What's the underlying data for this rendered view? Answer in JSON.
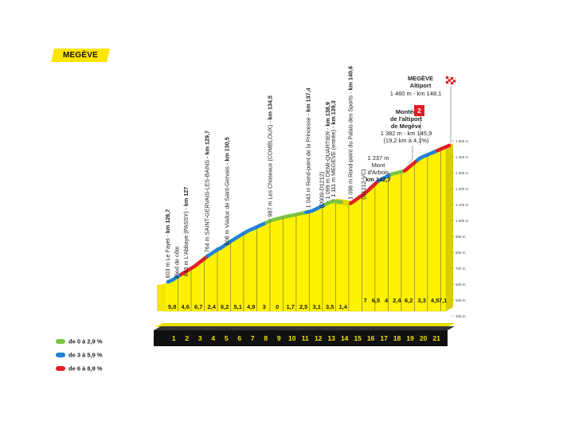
{
  "stage_title": "MEGÈVE",
  "legend": [
    {
      "label": "de 0 à 2,9 %",
      "color": "#7dc242"
    },
    {
      "label": "de 3 à 5,9 %",
      "color": "#1f83d8"
    },
    {
      "label": "de 6 à 8,9 %",
      "color": "#e31e24"
    }
  ],
  "colors": {
    "profile_fill": "#fff200",
    "profile_edge": "#d6c900",
    "base_bar": "#111111",
    "ground": "#f2e600"
  },
  "chart_data": {
    "type": "area",
    "title": "",
    "xlabel": "",
    "ylabel": "",
    "x_start_km": 126.7,
    "ylim": [
      400,
      1500
    ],
    "y_ticks": [
      400,
      500,
      600,
      700,
      800,
      900,
      1000,
      1100,
      1200,
      1300,
      1400,
      1500
    ],
    "y_tick_labels": [
      "400 m",
      "500 m",
      "600 m",
      "700 m",
      "800 m",
      "900 m",
      "1 000 m",
      "1 100 m",
      "1 200 m",
      "1 300 m",
      "1 400 m",
      "1 500 m"
    ],
    "km_marks": [
      "1",
      "2",
      "3",
      "4",
      "5",
      "6",
      "7",
      "8",
      "9",
      "10",
      "11",
      "12",
      "13",
      "14",
      "15",
      "16",
      "17",
      "18",
      "19",
      "20",
      "21"
    ],
    "segment_gradients": [
      "5,8",
      "4,6",
      "6,7",
      "2,4",
      "6,2",
      "5,1",
      "4,9",
      "3",
      "0",
      "1,7",
      "2,5",
      "3,1",
      "3,5",
      "1,4",
      "",
      "7",
      "6,5",
      "4",
      "2,4",
      "6,2",
      "3,3",
      "4,5",
      "7,1"
    ],
    "profile": [
      {
        "km": 0,
        "alt": 603
      },
      {
        "km": 0.3,
        "alt": 613
      },
      {
        "km": 1,
        "alt": 650
      },
      {
        "km": 2,
        "alt": 700
      },
      {
        "km": 3,
        "alt": 764
      },
      {
        "km": 3.8,
        "alt": 808
      },
      {
        "km": 4,
        "alt": 815
      },
      {
        "km": 5,
        "alt": 870
      },
      {
        "km": 6,
        "alt": 920
      },
      {
        "km": 7.8,
        "alt": 987
      },
      {
        "km": 8,
        "alt": 993
      },
      {
        "km": 9,
        "alt": 1013
      },
      {
        "km": 10.7,
        "alt": 1043
      },
      {
        "km": 11,
        "alt": 1050
      },
      {
        "km": 12.2,
        "alt": 1099
      },
      {
        "km": 12.6,
        "alt": 1111
      },
      {
        "km": 13.9,
        "alt": 1096
      },
      {
        "km": 15,
        "alt": 1160
      },
      {
        "km": 16,
        "alt": 1237
      },
      {
        "km": 17,
        "alt": 1280
      },
      {
        "km": 18,
        "alt": 1300
      },
      {
        "km": 19.2,
        "alt": 1382
      },
      {
        "km": 20,
        "alt": 1410
      },
      {
        "km": 21.4,
        "alt": 1460
      }
    ],
    "gradient_bands": [
      {
        "from": 0,
        "to": 1.0,
        "class": "de 3 à 5,9 %"
      },
      {
        "from": 1.0,
        "to": 3.0,
        "class": "de 6 à 8,9 %"
      },
      {
        "from": 3.0,
        "to": 4.0,
        "class": "de 3 à 5,9 %"
      },
      {
        "from": 4.0,
        "to": 7.5,
        "class": "de 3 à 5,9 %"
      },
      {
        "from": 7.5,
        "to": 10.5,
        "class": "de 0 à 2,9 %"
      },
      {
        "from": 10.5,
        "to": 12.0,
        "class": "de 3 à 5,9 %"
      },
      {
        "from": 12.0,
        "to": 13.2,
        "class": "de 0 à 2,9 %"
      },
      {
        "from": 13.9,
        "to": 16.0,
        "class": "de 6 à 8,9 %"
      },
      {
        "from": 16.0,
        "to": 17.0,
        "class": "de 3 à 5,9 %"
      },
      {
        "from": 17.0,
        "to": 18.0,
        "class": "de 0 à 2,9 %"
      },
      {
        "from": 18.0,
        "to": 19.0,
        "class": "de 6 à 8,9 %"
      },
      {
        "from": 19.0,
        "to": 20.5,
        "class": "de 3 à 5,9 %"
      },
      {
        "from": 20.5,
        "to": 21.4,
        "class": "de 6 à 8,9 %"
      }
    ],
    "annotations": [
      {
        "km": 0,
        "alt": 603,
        "text": "603 m Le Fayet - ",
        "bold": "km 126,7"
      },
      {
        "km": 0.15,
        "alt": 603,
        "text": "Pied de côte",
        "bold": ""
      },
      {
        "km": 0.3,
        "alt": 613,
        "text": "613 m L'Abbaye (PASSY) - ",
        "bold": "km 127"
      },
      {
        "km": 3,
        "alt": 764,
        "text": "764 m SAINT-GERVAIS-LES-BAINS - ",
        "bold": "km 129,7"
      },
      {
        "km": 3.8,
        "alt": 808,
        "text": "808 m Viaduc de Saint-Gervais - ",
        "bold": "km 130,5"
      },
      {
        "km": 7.8,
        "alt": 987,
        "text": "987 m Les Choseaux (COMBLOUX) - ",
        "bold": "km 134,5"
      },
      {
        "km": 10.7,
        "alt": 1043,
        "text": "1 043 m Rond-point de la Princesse - ",
        "bold": "km 137,4"
      },
      {
        "km": 11.0,
        "alt": 1043,
        "text": "(D909-D1212)",
        "bold": ""
      },
      {
        "km": 12.2,
        "alt": 1099,
        "text": "1 099 m DEMI-QUARTIER - ",
        "bold": "km 138,9"
      },
      {
        "km": 12.6,
        "alt": 1111,
        "text": "1 111 m MEGÈVE (entrée) - ",
        "bold": "km 139,3"
      },
      {
        "km": 13.9,
        "alt": 1096,
        "text": "1 096 m Rond-point du Palais des Sports - ",
        "bold": "km 140,6"
      },
      {
        "km": 14.2,
        "alt": 1096,
        "text": "(D1212-VC)",
        "bold": ""
      }
    ],
    "horizontal_annotations": {
      "arbois": {
        "lines": [
          "1 237 m",
          "Mont",
          "d'Arbois"
        ],
        "bold": "km 142,7"
      },
      "climb": {
        "lines": [
          "Montée",
          "de l'altiport",
          "de Megève"
        ],
        "details": [
          "1 382 m - km 145,9",
          "(19,2 km à 4,1%)"
        ],
        "category": "2"
      },
      "finish": {
        "lines": [
          "MEGÈVE",
          "Altiport"
        ],
        "details": [
          "1 460 m - km 148,1"
        ]
      }
    }
  }
}
